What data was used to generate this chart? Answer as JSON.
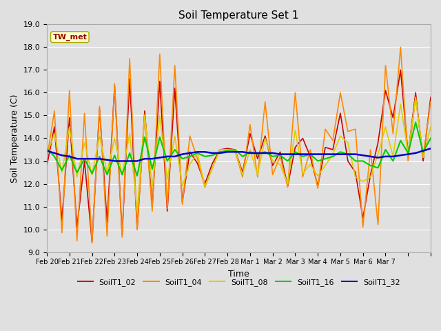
{
  "title": "Soil Temperature Set 1",
  "xlabel": "Time",
  "ylabel": "Soil Temperature (C)",
  "ylim": [
    9.0,
    19.0
  ],
  "yticks": [
    9.0,
    10.0,
    11.0,
    12.0,
    13.0,
    14.0,
    15.0,
    16.0,
    17.0,
    18.0,
    19.0
  ],
  "background_color": "#e0e0e0",
  "plot_bg_color": "#e0e0e0",
  "grid_color": "#ffffff",
  "annotation_text": "TW_met",
  "annotation_color": "#990000",
  "annotation_bg": "#ffffcc",
  "annotation_border": "#aaaa00",
  "series": {
    "SoilT1_02": {
      "color": "#cc0000",
      "linewidth": 1.2,
      "data": [
        12.8,
        14.5,
        10.4,
        14.9,
        10.1,
        13.0,
        9.45,
        15.3,
        10.3,
        16.3,
        9.75,
        16.6,
        10.0,
        15.2,
        11.0,
        16.5,
        10.8,
        16.2,
        11.2,
        13.4,
        12.9,
        12.0,
        12.9,
        13.5,
        13.55,
        13.5,
        12.5,
        14.2,
        13.1,
        14.1,
        12.8,
        13.4,
        11.9,
        13.6,
        14.0,
        13.2,
        11.9,
        13.6,
        13.5,
        15.1,
        13.0,
        12.5,
        10.5,
        12.4,
        13.8,
        16.1,
        14.9,
        17.0,
        13.3,
        16.0,
        13.0,
        15.8
      ]
    },
    "SoilT1_04": {
      "color": "#ff8800",
      "linewidth": 1.2,
      "data": [
        13.1,
        15.2,
        9.85,
        16.1,
        9.5,
        15.1,
        9.4,
        15.4,
        9.7,
        16.4,
        9.65,
        17.5,
        10.0,
        15.05,
        10.8,
        17.7,
        10.9,
        17.2,
        11.1,
        14.1,
        13.1,
        11.85,
        12.7,
        13.5,
        13.5,
        13.45,
        12.3,
        14.6,
        12.3,
        15.6,
        12.4,
        13.2,
        11.85,
        16.0,
        12.3,
        13.5,
        11.8,
        14.4,
        13.9,
        16.0,
        14.3,
        14.4,
        10.1,
        13.5,
        10.2,
        17.2,
        14.2,
        18.0,
        13.0,
        15.8,
        13.2,
        15.6
      ]
    },
    "SoilT1_08": {
      "color": "#ddcc00",
      "linewidth": 1.2,
      "data": [
        13.3,
        14.2,
        12.5,
        14.5,
        12.3,
        13.8,
        12.4,
        14.1,
        12.5,
        14.0,
        12.4,
        14.2,
        10.8,
        15.0,
        11.85,
        15.0,
        12.2,
        14.1,
        11.9,
        12.85,
        13.35,
        11.9,
        12.7,
        13.5,
        13.5,
        13.5,
        12.4,
        13.5,
        12.4,
        14.0,
        13.0,
        12.85,
        12.0,
        14.35,
        12.45,
        12.85,
        12.35,
        12.8,
        13.3,
        14.1,
        13.8,
        12.3,
        12.1,
        12.3,
        13.3,
        14.5,
        13.2,
        15.5,
        13.35,
        15.8,
        13.15,
        14.5
      ]
    },
    "SoilT1_16": {
      "color": "#00cc00",
      "linewidth": 1.5,
      "data": [
        13.55,
        13.2,
        12.6,
        13.25,
        12.5,
        13.1,
        12.45,
        13.2,
        12.4,
        13.25,
        12.4,
        13.35,
        12.35,
        14.05,
        12.65,
        14.05,
        13.0,
        13.5,
        13.1,
        13.2,
        13.35,
        13.2,
        13.25,
        13.4,
        13.45,
        13.5,
        13.2,
        13.4,
        13.3,
        13.4,
        13.2,
        13.25,
        13.0,
        13.4,
        13.2,
        13.3,
        13.0,
        13.1,
        13.2,
        13.4,
        13.3,
        13.0,
        13.0,
        12.8,
        12.7,
        13.5,
        13.0,
        13.9,
        13.35,
        14.7,
        13.4,
        14.0
      ]
    },
    "SoilT1_32": {
      "color": "#0000cc",
      "linewidth": 1.8,
      "data": [
        13.45,
        13.35,
        13.25,
        13.2,
        13.1,
        13.1,
        13.1,
        13.1,
        13.05,
        13.0,
        13.0,
        13.0,
        13.0,
        13.1,
        13.1,
        13.15,
        13.2,
        13.2,
        13.3,
        13.35,
        13.4,
        13.4,
        13.35,
        13.35,
        13.4,
        13.4,
        13.4,
        13.35,
        13.35,
        13.35,
        13.35,
        13.3,
        13.3,
        13.3,
        13.3,
        13.3,
        13.3,
        13.3,
        13.3,
        13.3,
        13.3,
        13.3,
        13.25,
        13.2,
        13.15,
        13.2,
        13.2,
        13.25,
        13.3,
        13.35,
        13.45,
        13.55
      ]
    }
  },
  "n_points": 52,
  "n_days": 16,
  "xtick_positions": [
    0,
    3,
    6,
    9,
    12,
    15,
    18,
    21,
    24,
    27,
    30,
    33,
    36,
    39,
    42,
    45,
    48,
    51
  ],
  "xtick_labels": [
    "Feb 20",
    "Feb 21",
    "Feb 22",
    "Feb 23",
    "Feb 24",
    "Feb 25",
    "Feb 26",
    "Feb 27",
    "Feb 28",
    "Mar 1",
    "Mar 2",
    "Mar 3",
    "Mar 4",
    "Mar 5",
    "Mar 6",
    "Mar 7",
    "",
    ""
  ],
  "legend_order": [
    "SoilT1_02",
    "SoilT1_04",
    "SoilT1_08",
    "SoilT1_16",
    "SoilT1_32"
  ]
}
